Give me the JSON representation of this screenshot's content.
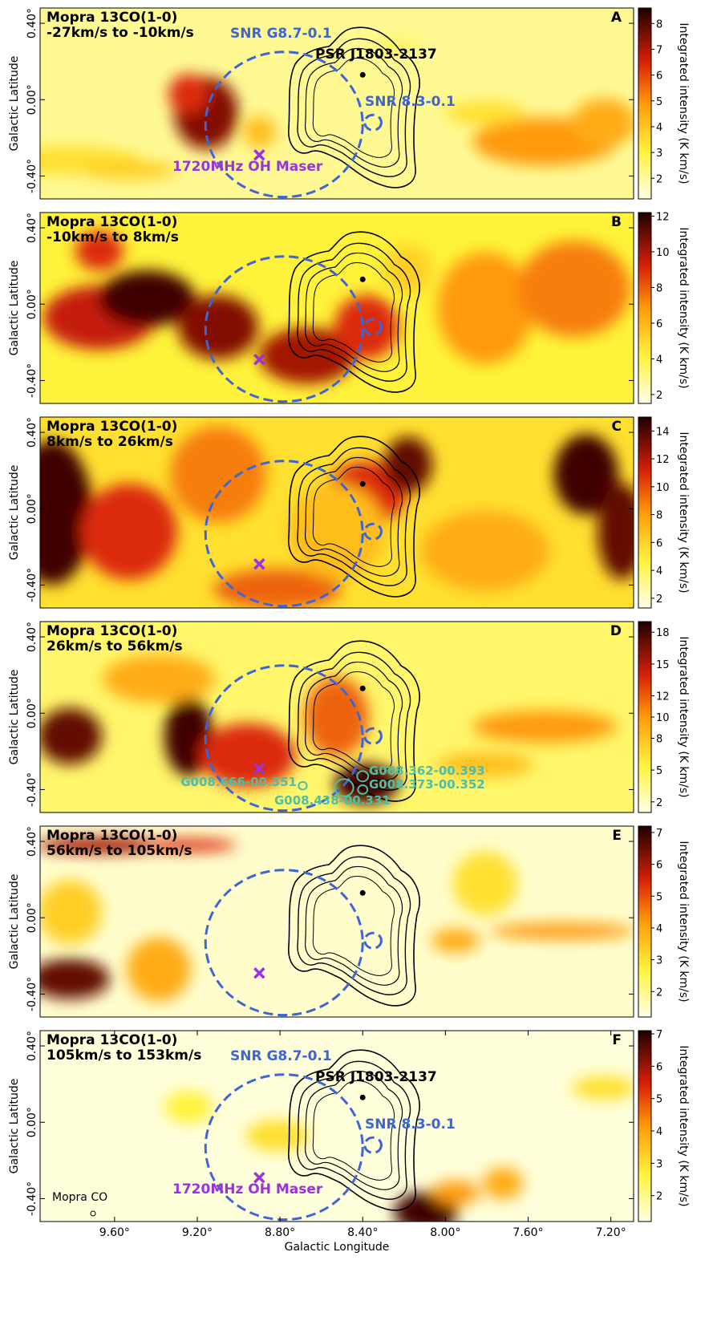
{
  "chart_data": [
    {
      "type": "heatmap",
      "panel": "A",
      "title": "Mopra 13CO(1-0)",
      "subtitle": "-27km/s to -10km/s",
      "ylabel": "Galactic Latitude",
      "xlim": [
        9.96,
        7.09
      ],
      "ylim": [
        -0.52,
        0.48
      ],
      "yticks": [
        {
          "value": 0.4,
          "label": "0.40°"
        },
        {
          "value": 0,
          "label": "0.00°"
        },
        {
          "value": -0.4,
          "label": "-0.40°"
        }
      ],
      "clim": [
        1.2,
        8.6
      ],
      "cticks": [
        2,
        3,
        4,
        5,
        6,
        7,
        8
      ],
      "clabel": "Integrated intensity (K km/s)",
      "snr": [
        {
          "l": 8.78,
          "b": -0.13,
          "r": 0.38
        },
        {
          "l": 8.35,
          "b": -0.12,
          "r": 0.04
        }
      ],
      "pulsar": {
        "l": 8.4,
        "b": 0.13
      },
      "maser": {
        "l": 8.9,
        "b": -0.29
      },
      "labels": [
        "SNR G8.7-0.1",
        "PSR J1803-2137",
        "SNR 8.3-0.1",
        "1720MHz OH Maser"
      ]
    },
    {
      "type": "heatmap",
      "panel": "B",
      "title": "Mopra 13CO(1-0)",
      "subtitle": "-10km/s to 8km/s",
      "ylabel": "Galactic Latitude",
      "xlim": [
        9.96,
        7.09
      ],
      "ylim": [
        -0.52,
        0.48
      ],
      "yticks": [
        {
          "value": 0.4,
          "label": "0.40°"
        },
        {
          "value": 0,
          "label": "0.00°"
        },
        {
          "value": -0.4,
          "label": "-0.40°"
        }
      ],
      "clim": [
        1.5,
        12.2
      ],
      "cticks": [
        2,
        4,
        6,
        8,
        10,
        12
      ],
      "clabel": "Integrated intensity (K km/s)",
      "snr": [
        {
          "l": 8.78,
          "b": -0.13,
          "r": 0.38
        },
        {
          "l": 8.35,
          "b": -0.12,
          "r": 0.04
        }
      ],
      "pulsar": {
        "l": 8.4,
        "b": 0.13
      },
      "maser": {
        "l": 8.9,
        "b": -0.29
      }
    },
    {
      "type": "heatmap",
      "panel": "C",
      "title": "Mopra 13CO(1-0)",
      "subtitle": "8km/s to 26km/s",
      "ylabel": "Galactic Latitude",
      "xlim": [
        9.96,
        7.09
      ],
      "ylim": [
        -0.52,
        0.48
      ],
      "yticks": [
        {
          "value": 0.4,
          "label": "0.40°"
        },
        {
          "value": 0,
          "label": "0.00°"
        },
        {
          "value": -0.4,
          "label": "-0.40°"
        }
      ],
      "clim": [
        1.3,
        15
      ],
      "cticks": [
        2,
        4,
        6,
        8,
        10,
        12,
        14
      ],
      "clabel": "Integrated intensity (K km/s)",
      "snr": [
        {
          "l": 8.78,
          "b": -0.13,
          "r": 0.38
        },
        {
          "l": 8.35,
          "b": -0.12,
          "r": 0.04
        }
      ],
      "pulsar": {
        "l": 8.4,
        "b": 0.13
      },
      "maser": {
        "l": 8.9,
        "b": -0.29
      }
    },
    {
      "type": "heatmap",
      "panel": "D",
      "title": "Mopra 13CO(1-0)",
      "subtitle": "26km/s to 56km/s",
      "ylabel": "Galactic Latitude",
      "xlim": [
        9.96,
        7.09
      ],
      "ylim": [
        -0.52,
        0.48
      ],
      "yticks": [
        {
          "value": 0.4,
          "label": "0.40°"
        },
        {
          "value": 0,
          "label": "0.00°"
        },
        {
          "value": -0.4,
          "label": "-0.40°"
        }
      ],
      "clim": [
        1,
        19
      ],
      "cticks": [
        2,
        5,
        8,
        10,
        12,
        15,
        18
      ],
      "clabel": "Integrated intensity (K km/s)",
      "snr": [
        {
          "l": 8.78,
          "b": -0.13,
          "r": 0.38
        },
        {
          "l": 8.35,
          "b": -0.12,
          "r": 0.04
        }
      ],
      "pulsar": {
        "l": 8.4,
        "b": 0.13
      },
      "maser": {
        "l": 8.9,
        "b": -0.29
      },
      "sources": [
        {
          "name": "G008.666-00.351",
          "l": 8.69,
          "b": -0.38,
          "r": 0.02
        },
        {
          "name": "G008.438-00.331",
          "l": 8.49,
          "b": -0.39,
          "r": 0.045
        },
        {
          "name": "G008.362-00.393",
          "l": 8.4,
          "b": -0.33,
          "r": 0.027
        },
        {
          "name": "G008.373-00.352",
          "l": 8.4,
          "b": -0.4,
          "r": 0.023
        }
      ]
    },
    {
      "type": "heatmap",
      "panel": "E",
      "title": "Mopra 13CO(1-0)",
      "subtitle": "56km/s to 105km/s",
      "ylabel": "Galactic Latitude",
      "xlim": [
        9.96,
        7.09
      ],
      "ylim": [
        -0.52,
        0.48
      ],
      "yticks": [
        {
          "value": 0.4,
          "label": "0.40°"
        },
        {
          "value": 0,
          "label": "0.00°"
        },
        {
          "value": -0.4,
          "label": "-0.40°"
        }
      ],
      "clim": [
        1.2,
        7.2
      ],
      "cticks": [
        2,
        3,
        4,
        5,
        6,
        7
      ],
      "clabel": "Integrated intensity (K km/s)",
      "snr": [
        {
          "l": 8.78,
          "b": -0.13,
          "r": 0.38
        },
        {
          "l": 8.35,
          "b": -0.12,
          "r": 0.04
        }
      ],
      "pulsar": {
        "l": 8.4,
        "b": 0.13
      },
      "maser": {
        "l": 8.9,
        "b": -0.29
      }
    },
    {
      "type": "heatmap",
      "panel": "F",
      "title": "Mopra 13CO(1-0)",
      "subtitle": "105km/s to 153km/s",
      "ylabel": "Galactic Latitude",
      "xlabel": "Galactic Longitude",
      "xlim": [
        9.96,
        7.09
      ],
      "ylim": [
        -0.52,
        0.48
      ],
      "xticks": [
        {
          "value": 9.6,
          "label": "9.60°"
        },
        {
          "value": 9.2,
          "label": "9.20°"
        },
        {
          "value": 8.8,
          "label": "8.80°"
        },
        {
          "value": 8.4,
          "label": "8.40°"
        },
        {
          "value": 8.0,
          "label": "8.00°"
        },
        {
          "value": 7.6,
          "label": "7.60°"
        },
        {
          "value": 7.2,
          "label": "7.20°"
        }
      ],
      "yticks": [
        {
          "value": 0.4,
          "label": "0.40°"
        },
        {
          "value": 0,
          "label": "0.00°"
        },
        {
          "value": -0.4,
          "label": "-0.40°"
        }
      ],
      "clim": [
        1.2,
        7.1
      ],
      "cticks": [
        2,
        3,
        4,
        5,
        6,
        7
      ],
      "clabel": "Integrated intensity (K km/s)",
      "snr": [
        {
          "l": 8.78,
          "b": -0.13,
          "r": 0.38
        },
        {
          "l": 8.35,
          "b": -0.12,
          "r": 0.04
        }
      ],
      "pulsar": {
        "l": 8.4,
        "b": 0.13
      },
      "maser": {
        "l": 8.9,
        "b": -0.29
      },
      "labels": [
        "SNR G8.7-0.1",
        "PSR J1803-2137",
        "SNR 8.3-0.1",
        "1720MHz OH Maser"
      ],
      "beam_label": "Mopra CO"
    }
  ]
}
